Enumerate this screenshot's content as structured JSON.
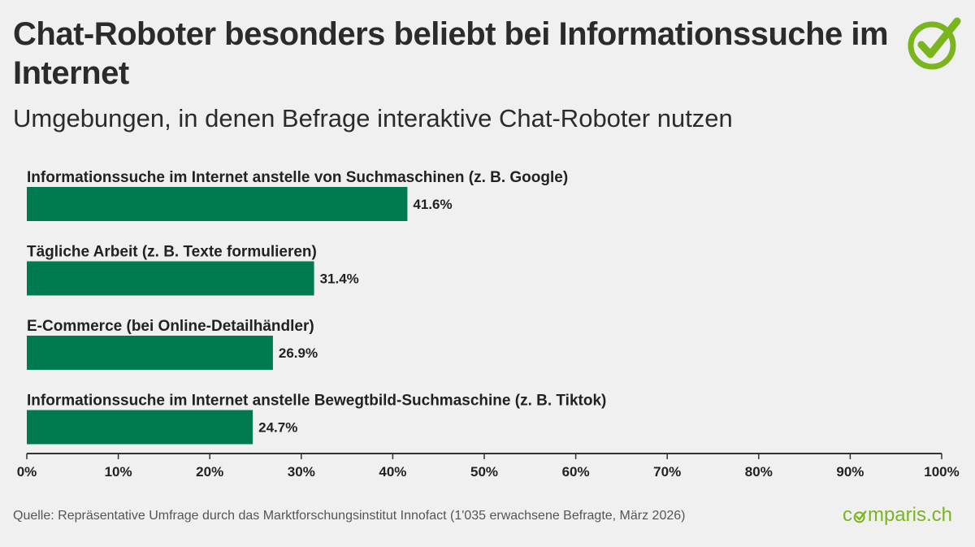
{
  "title": "Chat-Roboter besonders beliebt bei Informationssuche im Internet",
  "subtitle": "Umgebungen, in denen Befrage interaktive Chat-Roboter nutzen",
  "source": "Quelle: Repräsentative Umfrage durch das Marktforschungsinstitut Innofact (1'035 erwachsene Befragte, März 2026)",
  "brand": {
    "before": "c",
    "after": "mparis.ch"
  },
  "colors": {
    "bar": "#007b50",
    "brand": "#7ab51d",
    "axis": "#333333",
    "background": "#f0f0f0"
  },
  "icons": {
    "logo": "check-circle-icon"
  },
  "chart_data": {
    "type": "bar",
    "orientation": "horizontal",
    "categories": [
      "Informationssuche im Internet anstelle von Suchmaschinen (z. B. Google)",
      "Tägliche Arbeit (z. B. Texte formulieren)",
      "E-Commerce (bei Online-Detailhändler)",
      "Informationssuche im Internet anstelle Bewegtbild-Suchmaschine (z. B. Tiktok)"
    ],
    "values": [
      41.6,
      31.4,
      26.9,
      24.7
    ],
    "value_labels": [
      "41.6%",
      "31.4%",
      "26.9%",
      "24.7%"
    ],
    "xlim": [
      0,
      100
    ],
    "xticks": [
      0,
      10,
      20,
      30,
      40,
      50,
      60,
      70,
      80,
      90,
      100
    ],
    "xtick_labels": [
      "0%",
      "10%",
      "20%",
      "30%",
      "40%",
      "50%",
      "60%",
      "70%",
      "80%",
      "90%",
      "100%"
    ],
    "grid": false,
    "legend": "none"
  }
}
